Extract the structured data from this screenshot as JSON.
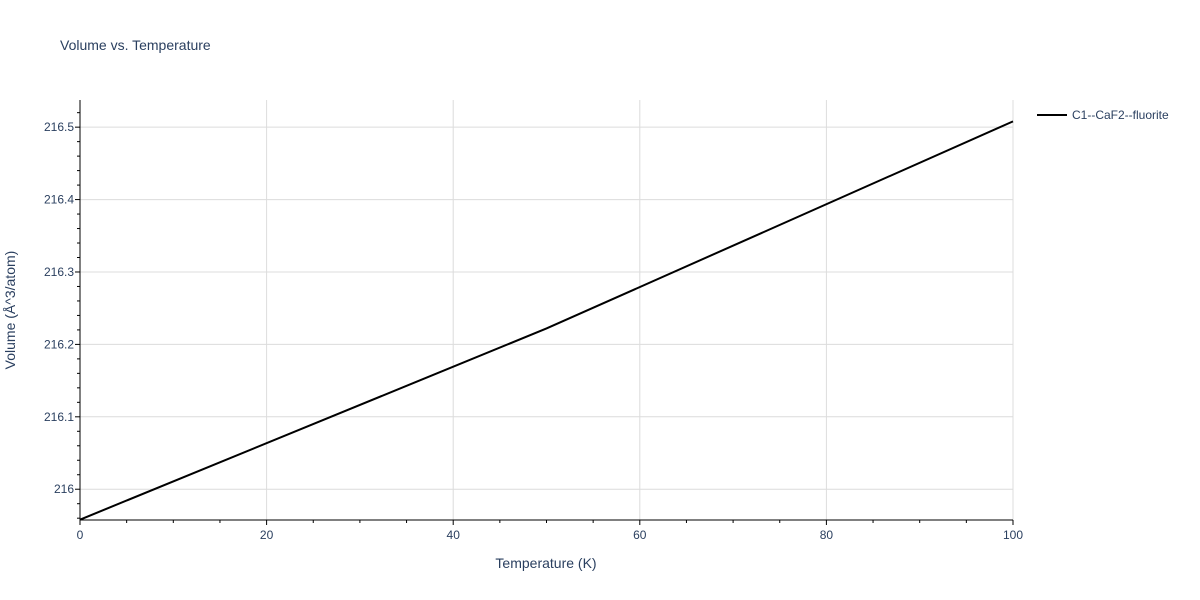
{
  "chart_data": {
    "type": "line",
    "title": "Volume vs. Temperature",
    "xlabel": "Temperature (K)",
    "ylabel": "Volume (Å^3/atom)",
    "xlim": [
      0,
      100
    ],
    "ylim": [
      215.9575,
      216.5375
    ],
    "x_ticks": [
      0,
      20,
      40,
      60,
      80,
      100
    ],
    "x_tick_labels": [
      "0",
      "20",
      "40",
      "60",
      "80",
      "100"
    ],
    "y_ticks": [
      216.0,
      216.1,
      216.2,
      216.3,
      216.4,
      216.5
    ],
    "y_tick_labels": [
      "216",
      "216.1",
      "216.2",
      "216.3",
      "216.4",
      "216.5"
    ],
    "grid": true,
    "legend_position": "top-right",
    "series": [
      {
        "name": "C1--CaF2--fluorite",
        "color": "#000000",
        "x": [
          0,
          50,
          100
        ],
        "y": [
          215.958,
          216.222,
          216.508
        ]
      }
    ]
  }
}
